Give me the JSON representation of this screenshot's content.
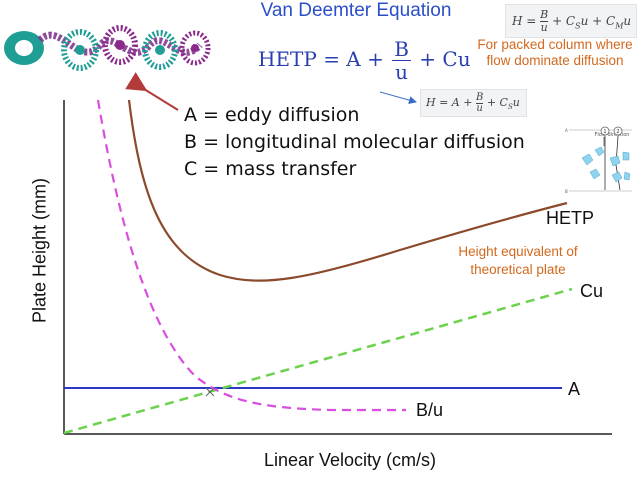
{
  "title": "Van Deemter Equation",
  "equation": {
    "lhs": "HETP = A + ",
    "numerator": "B",
    "denominator": "u",
    "rhs": " + Cu"
  },
  "legend": [
    "A = eddy diffusion",
    "B = longitudinal molecular diffusion",
    "C = mass transfer"
  ],
  "packed_column_note": "For packed column where flow dominate diffusion",
  "packed_column_equation": {
    "lhs": "H = ",
    "numerator": "B",
    "denominator": "u",
    "rhs": " + C",
    "sub1": "S",
    "mid": "u + C",
    "sub2": "M",
    "end": "u"
  },
  "small_equation": {
    "lhs": "H = A + ",
    "numerator": "B",
    "denominator": "u",
    "rhs": " + C",
    "sub": "S",
    "end": "u"
  },
  "inset_figure": {
    "label": "Flow direction",
    "marks": [
      "A",
      "B",
      "1",
      "2"
    ]
  },
  "hetp_note": "Height equivalent of theoretical plate",
  "axes": {
    "xlabel": "Linear Velocity (cm/s)",
    "ylabel": "Plate Height (mm)"
  },
  "curve_labels": {
    "hetp": "HETP",
    "cu": "Cu",
    "a": "A",
    "bu": "B/u"
  },
  "colors": {
    "title": "#2b4fc9",
    "hetp": "#8b4a2b",
    "cu": "#6cd14c",
    "a": "#2a37c8",
    "bu": "#d84fe0",
    "note": "#d2691e",
    "arrow": "#b33a3a"
  }
}
